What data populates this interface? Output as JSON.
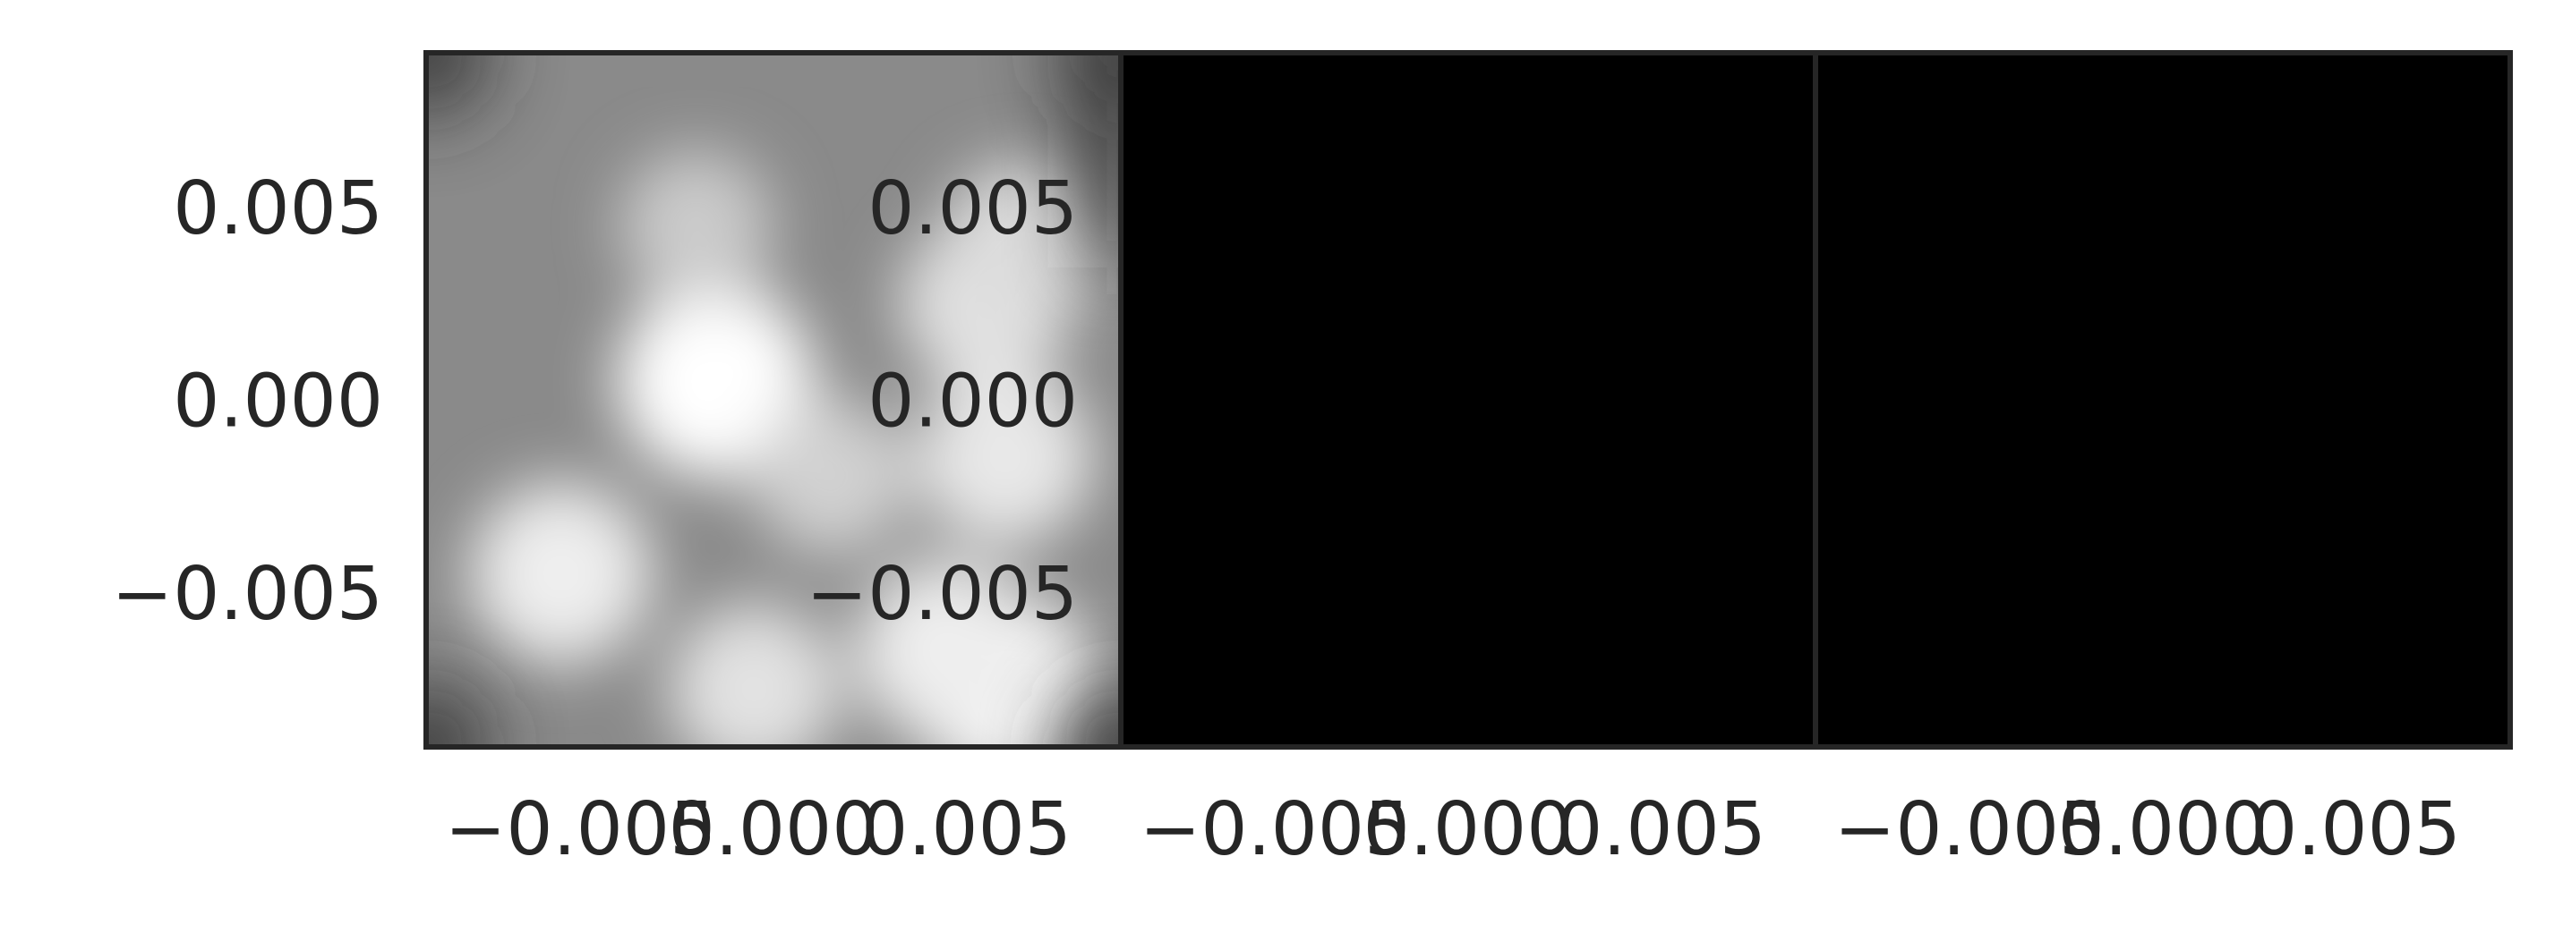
{
  "colors": {
    "frame": "#262626",
    "tick_text": "#262626",
    "background": "#ffffff"
  },
  "chart_data": [
    {
      "type": "heatmap",
      "title": "",
      "xlabel": "",
      "ylabel": "",
      "colormap": "gray",
      "xlim": [
        -0.009,
        0.009
      ],
      "ylim": [
        -0.009,
        0.009
      ],
      "x_ticks": [
        -0.005,
        0.0,
        0.005
      ],
      "x_tick_labels": [
        "−0.005",
        "0.000",
        "0.005"
      ],
      "y_ticks": [
        0.005,
        0.0,
        -0.005
      ],
      "y_tick_labels": [
        "0.005",
        "0.000",
        "−0.005"
      ],
      "grid": false,
      "intensity_peaks": [
        {
          "x": -0.0015,
          "y": 0.0005,
          "intensity": 1.0
        },
        {
          "x": -0.002,
          "y": 0.0045,
          "intensity": 0.55
        },
        {
          "x": 0.0055,
          "y": 0.0025,
          "intensity": 0.75
        },
        {
          "x": 0.0065,
          "y": 0.004,
          "intensity": 0.7
        },
        {
          "x": 0.006,
          "y": -0.0015,
          "intensity": 0.8
        },
        {
          "x": -0.0055,
          "y": -0.0045,
          "intensity": 0.85
        },
        {
          "x": 0.006,
          "y": -0.0075,
          "intensity": 0.95
        },
        {
          "x": 0.0045,
          "y": -0.0065,
          "intensity": 0.85
        },
        {
          "x": -0.0005,
          "y": -0.0075,
          "intensity": 0.75
        },
        {
          "x": 0.0015,
          "y": -0.002,
          "intensity": 0.6
        }
      ]
    },
    {
      "type": "heatmap",
      "title": "",
      "xlabel": "",
      "ylabel": "",
      "colormap": "gray",
      "xlim": [
        -0.009,
        0.009
      ],
      "ylim": [
        -0.009,
        0.009
      ],
      "x_ticks": [
        -0.005,
        0.0,
        0.005
      ],
      "x_tick_labels": [
        "−0.005",
        "0.000",
        "0.005"
      ],
      "y_ticks": [
        0.005,
        0.0,
        -0.005
      ],
      "y_tick_labels": [
        "0.005",
        "0.000",
        "−0.005"
      ],
      "grid": false,
      "uniform_value": 0
    },
    {
      "type": "heatmap",
      "title": "",
      "xlabel": "",
      "ylabel": "",
      "colormap": "gray",
      "xlim": [
        -0.009,
        0.009
      ],
      "ylim": [
        -0.009,
        0.009
      ],
      "x_ticks": [
        -0.005,
        0.0,
        0.005
      ],
      "x_tick_labels": [
        "−0.005",
        "0.000",
        "0.005"
      ],
      "y_ticks": [],
      "y_tick_labels": [],
      "grid": false,
      "uniform_value": 0
    }
  ]
}
